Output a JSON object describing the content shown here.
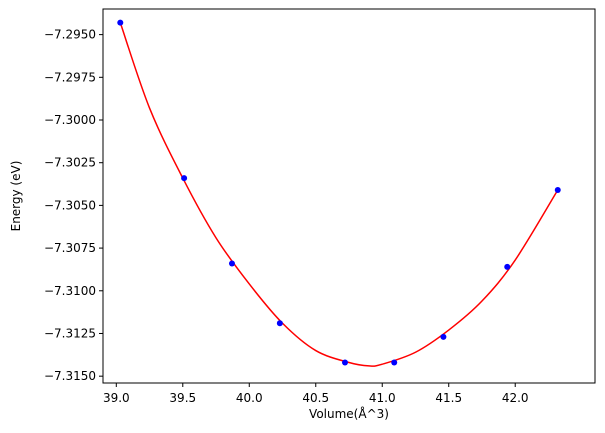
{
  "chart_data": {
    "type": "scatter",
    "xlabel": "Volume(Å^3)",
    "ylabel": "Energy (eV)",
    "xlim": [
      38.9,
      42.6
    ],
    "ylim": [
      -7.3154,
      -7.2935
    ],
    "xticks": [
      39.0,
      39.5,
      40.0,
      40.5,
      41.0,
      41.5,
      42.0
    ],
    "xtick_labels": [
      "39.0",
      "39.5",
      "40.0",
      "40.5",
      "41.0",
      "41.5",
      "42.0"
    ],
    "yticks": [
      -7.295,
      -7.2975,
      -7.3,
      -7.3025,
      -7.305,
      -7.3075,
      -7.31,
      -7.3125,
      -7.315
    ],
    "ytick_labels": [
      "−7.2950",
      "−7.2975",
      "−7.3000",
      "−7.3025",
      "−7.3050",
      "−7.3075",
      "−7.3100",
      "−7.3125",
      "−7.3150"
    ],
    "grid": false,
    "series": [
      {
        "kind": "points",
        "color": "#0000ff",
        "x": [
          39.03,
          39.51,
          39.87,
          40.23,
          40.72,
          41.09,
          41.46,
          41.94,
          42.32
        ],
        "y": [
          -7.2943,
          -7.3034,
          -7.3084,
          -7.3119,
          -7.3142,
          -7.3142,
          -7.3127,
          -7.3086,
          -7.3041
        ]
      },
      {
        "kind": "fit-curve",
        "color": "#ff0000",
        "x": [
          39.03,
          39.25,
          39.5,
          39.75,
          40.0,
          40.25,
          40.5,
          40.75,
          40.9,
          41.0,
          41.25,
          41.5,
          41.75,
          42.0,
          42.32
        ],
        "y": [
          -7.2943,
          -7.2993,
          -7.3034,
          -7.3069,
          -7.3096,
          -7.3119,
          -7.3135,
          -7.3142,
          -7.3144,
          -7.3143,
          -7.3136,
          -7.3123,
          -7.3106,
          -7.3082,
          -7.3041
        ]
      }
    ]
  }
}
